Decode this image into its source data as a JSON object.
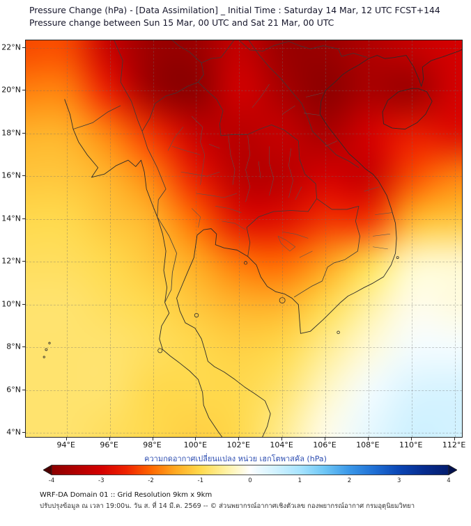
{
  "header": {
    "title_line1": "Pressure Change (hPa) - [Data Assimilation] _ Initial Time : Saturday 14 Mar, 12 UTC FCST+144",
    "title_line2": "Pressure change between Sun 15 Mar, 00 UTC and Sat 21 Mar, 00 UTC"
  },
  "axes": {
    "x_ticks": [
      {
        "value": 94,
        "label": "94°E"
      },
      {
        "value": 96,
        "label": "96°E"
      },
      {
        "value": 98,
        "label": "98°E"
      },
      {
        "value": 100,
        "label": "100°E"
      },
      {
        "value": 102,
        "label": "102°E"
      },
      {
        "value": 104,
        "label": "104°E"
      },
      {
        "value": 106,
        "label": "106°E"
      },
      {
        "value": 108,
        "label": "108°E"
      },
      {
        "value": 110,
        "label": "110°E"
      },
      {
        "value": 112,
        "label": "112°E"
      }
    ],
    "y_ticks": [
      {
        "value": 22,
        "label": "22°N"
      },
      {
        "value": 20,
        "label": "20°N"
      },
      {
        "value": 18,
        "label": "18°N"
      },
      {
        "value": 16,
        "label": "16°N"
      },
      {
        "value": 14,
        "label": "14°N"
      },
      {
        "value": 12,
        "label": "12°N"
      },
      {
        "value": 10,
        "label": "10°N"
      },
      {
        "value": 8,
        "label": "8°N"
      },
      {
        "value": 6,
        "label": "6°N"
      },
      {
        "value": 4,
        "label": "4°N"
      }
    ]
  },
  "colorbar": {
    "label": "ความกดอากาศเปลี่ยนแปลง หน่วย เฮกโตพาสคัล (hPa)",
    "min": -4,
    "max": 4
  },
  "footer": {
    "model_info": "WRF-DA Domain 01 :: Grid Resolution 9km x 9km",
    "update_info": "ปรับปรุงข้อมูล ณ เวลา 19:00น. วัน ส. ที่ 14 มี.ค. 2569 -- © ส่วนพยากรณ์อากาศเชิงตัวเลข กองพยากรณ์อากาศ กรมอุตุนิยมวิทยา"
  },
  "chart_data": {
    "type": "heatmap",
    "title": "Pressure Change (hPa) - [Data Assimilation] _ Initial Time : Saturday 14 Mar, 12 UTC FCST+144",
    "subtitle": "Pressure change between Sun 15 Mar, 00 UTC and Sat 21 Mar, 00 UTC",
    "units": "hPa",
    "x_name": "longitude_deg_E",
    "y_name": "latitude_deg_N",
    "x_range": [
      92.1,
      112.4
    ],
    "y_range": [
      3.75,
      22.35
    ],
    "grid": {
      "lons": [
        94,
        96,
        98,
        100,
        102,
        104,
        106,
        108,
        110,
        112
      ],
      "lats": [
        22,
        20,
        18,
        16,
        14,
        12,
        10,
        8,
        6,
        4
      ],
      "values_hpa": [
        [
          -2.2,
          -3.2,
          -3.8,
          -3.8,
          -3.2,
          -3.8,
          -3.8,
          -3.5,
          -3.2,
          -3.0
        ],
        [
          -1.8,
          -2.6,
          -3.8,
          -4.0,
          -3.0,
          -3.6,
          -4.0,
          -3.6,
          -3.8,
          -3.0
        ],
        [
          -1.4,
          -1.8,
          -2.4,
          -3.2,
          -3.4,
          -3.2,
          -3.6,
          -3.0,
          -2.6,
          -2.8
        ],
        [
          -1.2,
          -1.4,
          -1.8,
          -2.6,
          -3.4,
          -3.4,
          -3.0,
          -3.2,
          -2.2,
          -1.8
        ],
        [
          -1.0,
          -1.2,
          -1.4,
          -2.0,
          -2.8,
          -2.8,
          -2.4,
          -2.4,
          -1.4,
          -1.2
        ],
        [
          -0.9,
          -1.0,
          -1.2,
          -1.5,
          -1.9,
          -2.0,
          -1.6,
          -1.0,
          -0.3,
          -0.25
        ],
        [
          -0.8,
          -0.9,
          -1.0,
          -1.2,
          -1.4,
          -1.4,
          -1.0,
          -0.5,
          -0.1,
          -0.15
        ],
        [
          -0.8,
          -0.8,
          -0.9,
          -1.0,
          -1.1,
          -1.0,
          -0.6,
          -0.2,
          0.1,
          0.1
        ],
        [
          -0.8,
          -0.8,
          -1.0,
          -1.0,
          -1.0,
          -0.8,
          -0.3,
          0.1,
          0.4,
          0.45
        ],
        [
          -0.8,
          -0.9,
          -1.0,
          -1.1,
          -1.0,
          -0.6,
          -0.1,
          0.25,
          0.55,
          0.5
        ]
      ]
    },
    "colormap": [
      [
        -4.5,
        "#4d0000"
      ],
      [
        -4.0,
        "#8b0000"
      ],
      [
        -3.5,
        "#b10000"
      ],
      [
        -3.0,
        "#d40000"
      ],
      [
        -2.5,
        "#ee2200"
      ],
      [
        -2.0,
        "#ff6600"
      ],
      [
        -1.5,
        "#ffaa22"
      ],
      [
        -1.0,
        "#ffd94d"
      ],
      [
        -0.5,
        "#fff1a0"
      ],
      [
        -0.15,
        "#fffbe0"
      ],
      [
        0.0,
        "#ffffff"
      ],
      [
        0.15,
        "#eefaff"
      ],
      [
        0.5,
        "#d2f2ff"
      ],
      [
        1.0,
        "#a8e4ff"
      ],
      [
        1.5,
        "#6ec6f5"
      ],
      [
        2.0,
        "#3a97e8"
      ],
      [
        2.5,
        "#1f6fd4"
      ],
      [
        3.0,
        "#0b46b4"
      ],
      [
        3.5,
        "#062c8f"
      ],
      [
        4.0,
        "#041d6e"
      ],
      [
        4.5,
        "#02114d"
      ]
    ],
    "colorbar_ticks": [
      -4,
      -3,
      -2,
      -1,
      0,
      1,
      2,
      3,
      4
    ],
    "colorbar_range": [
      -4,
      4
    ],
    "legend_position": "bottom",
    "grid_lines": true
  }
}
